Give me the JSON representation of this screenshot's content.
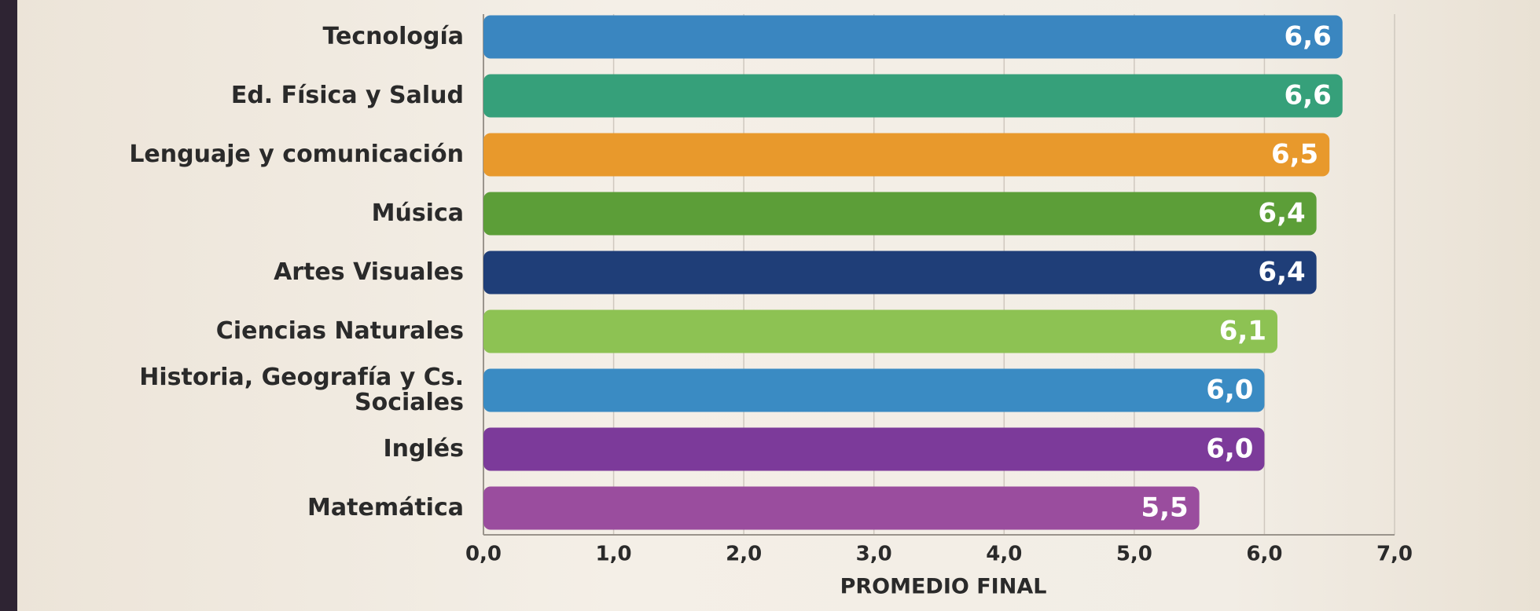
{
  "chart_data": {
    "type": "hbar",
    "categories": [
      "Tecnología",
      "Ed. Física y Salud",
      "Lenguaje y comunicación",
      "Música",
      "Artes Visuales",
      "Ciencias Naturales",
      "Historia, Geografía y Cs. Sociales",
      "Inglés",
      "Matemática"
    ],
    "values": [
      6.6,
      6.6,
      6.5,
      6.4,
      6.4,
      6.1,
      6.0,
      6.0,
      5.5
    ],
    "value_labels": [
      "6,6",
      "6,6",
      "6,5",
      "6,4",
      "6,4",
      "6,1",
      "6,0",
      "6,0",
      "5,5"
    ],
    "colors": [
      "#3a86c0",
      "#36a07a",
      "#e8992c",
      "#5c9e38",
      "#1f3e78",
      "#8dc253",
      "#3a8bc3",
      "#7c3a9a",
      "#9a4d9e"
    ],
    "xlabel": "PROMEDIO FINAL",
    "xlim": [
      0,
      7
    ],
    "xticks": [
      {
        "value": 0,
        "label": "0,0"
      },
      {
        "value": 1,
        "label": "1,0"
      },
      {
        "value": 2,
        "label": "2,0"
      },
      {
        "value": 3,
        "label": "3,0"
      },
      {
        "value": 4,
        "label": "4,0"
      },
      {
        "value": 5,
        "label": "5,0"
      },
      {
        "value": 6,
        "label": "6,0"
      },
      {
        "value": 7,
        "label": "7,0"
      }
    ],
    "grid": true
  }
}
